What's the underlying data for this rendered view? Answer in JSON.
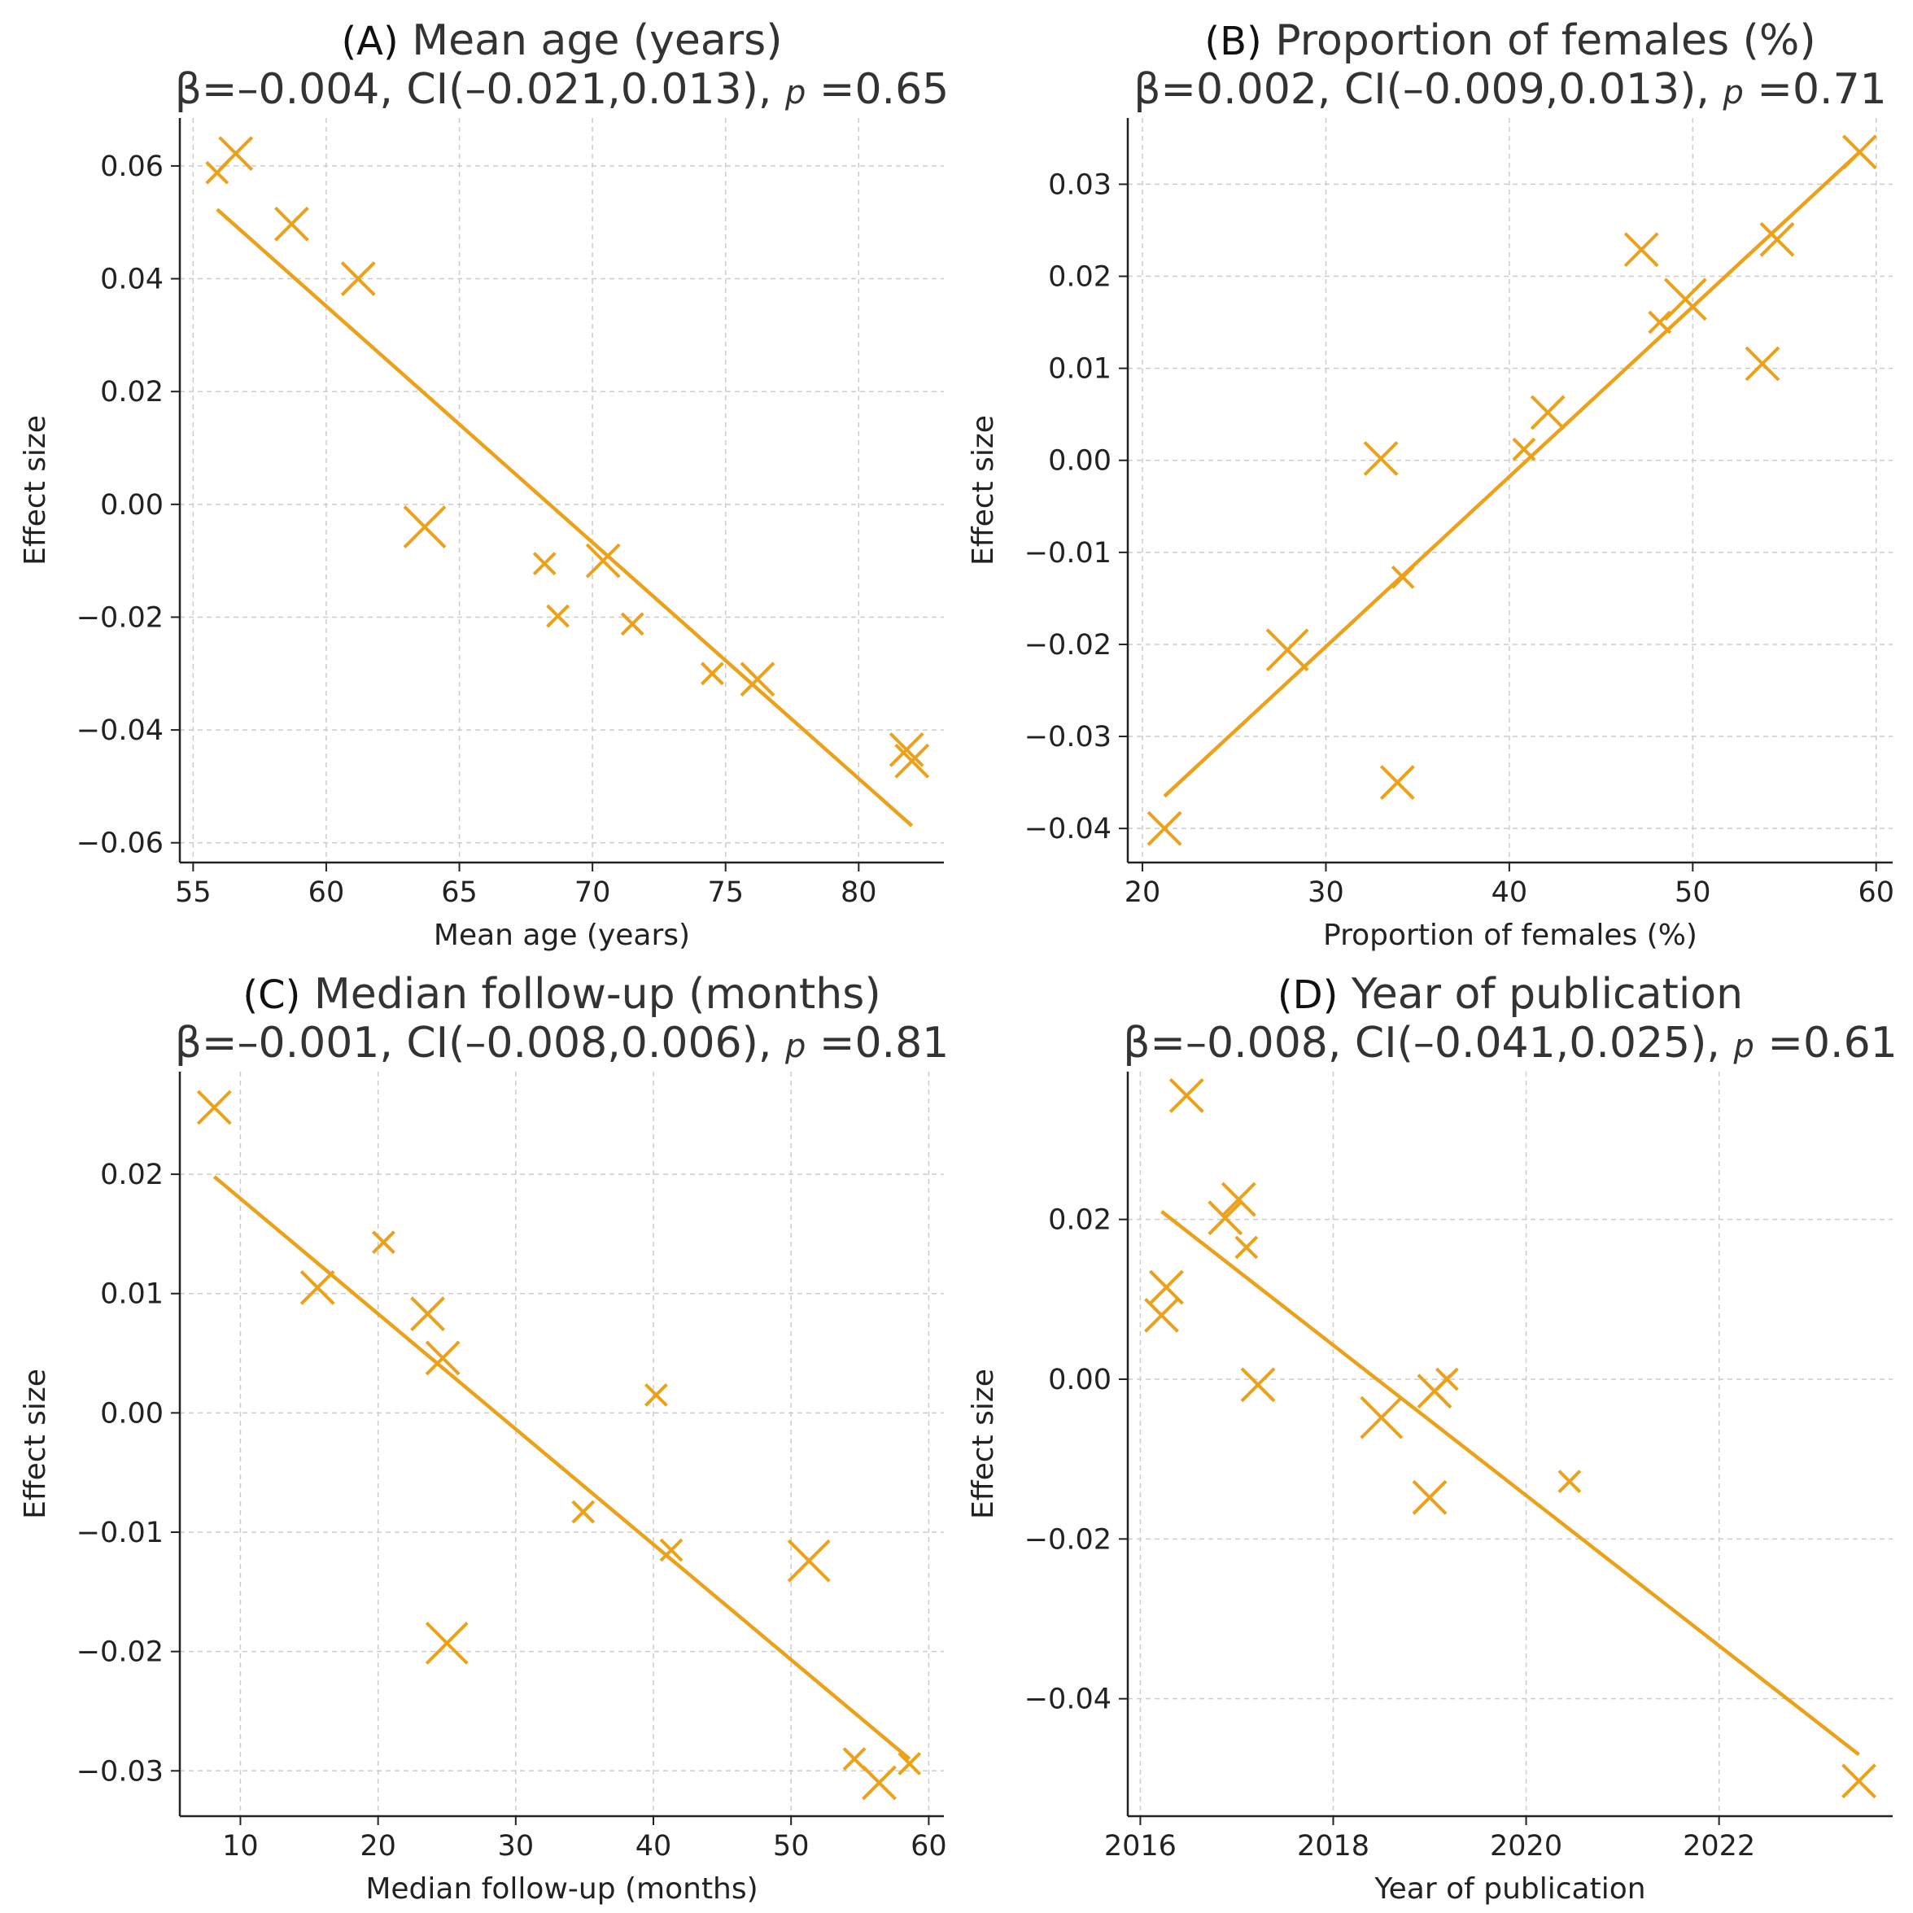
{
  "figure": {
    "accent_color": "#EBA21A",
    "grid_color": "#cccccc"
  },
  "chart_data": [
    {
      "type": "scatter",
      "panel_letter": "(A)",
      "title": "Mean age (years)",
      "stats_pre": "β=–0.004, CI(–0.021,0.013), ",
      "stats_p_symbol": "p",
      "stats_post": " =0.65",
      "xlabel": "Mean age (years)",
      "ylabel": "Effect size",
      "xlim": [
        54.5,
        83.2
      ],
      "ylim": [
        -0.0635,
        0.0685
      ],
      "xticks": [
        55,
        60,
        65,
        70,
        75,
        80
      ],
      "xtick_labels": [
        "55",
        "60",
        "65",
        "70",
        "75",
        "80"
      ],
      "yticks": [
        -0.06,
        -0.04,
        -0.02,
        0.0,
        0.02,
        0.04,
        0.06
      ],
      "ytick_labels": [
        "−0.06",
        "−0.04",
        "−0.02",
        "0.00",
        "0.02",
        "0.04",
        "0.06"
      ],
      "points": [
        {
          "x": 55.9,
          "y": 0.0588,
          "s": 1
        },
        {
          "x": 56.6,
          "y": 0.0622,
          "s": 2
        },
        {
          "x": 58.7,
          "y": 0.0497,
          "s": 2
        },
        {
          "x": 61.2,
          "y": 0.04,
          "s": 2
        },
        {
          "x": 63.7,
          "y": -0.004,
          "s": 3
        },
        {
          "x": 68.2,
          "y": -0.0105,
          "s": 1
        },
        {
          "x": 68.7,
          "y": -0.0198,
          "s": 1
        },
        {
          "x": 70.4,
          "y": -0.01,
          "s": 2
        },
        {
          "x": 71.5,
          "y": -0.0212,
          "s": 1
        },
        {
          "x": 74.5,
          "y": -0.03,
          "s": 1
        },
        {
          "x": 76.2,
          "y": -0.031,
          "s": 2
        },
        {
          "x": 81.8,
          "y": -0.0435,
          "s": 2
        },
        {
          "x": 82.0,
          "y": -0.0455,
          "s": 2
        }
      ],
      "fit_line": [
        [
          55.9,
          0.0523
        ],
        [
          82.0,
          -0.057
        ]
      ]
    },
    {
      "type": "scatter",
      "panel_letter": "(B)",
      "title": "Proportion of females (%)",
      "stats_pre": "β=0.002, CI(–0.009,0.013), ",
      "stats_p_symbol": "p",
      "stats_post": " =0.71",
      "xlabel": "Proportion of females (%)",
      "ylabel": "Effect size",
      "xlim": [
        19.2,
        60.9
      ],
      "ylim": [
        -0.0437,
        0.0372
      ],
      "xticks": [
        20,
        30,
        40,
        50,
        60
      ],
      "xtick_labels": [
        "20",
        "30",
        "40",
        "50",
        "60"
      ],
      "yticks": [
        -0.04,
        -0.03,
        -0.02,
        -0.01,
        0.0,
        0.01,
        0.02,
        0.03
      ],
      "ytick_labels": [
        "−0.04",
        "−0.03",
        "−0.02",
        "−0.01",
        "0.00",
        "0.01",
        "0.02",
        "0.03"
      ],
      "points": [
        {
          "x": 21.2,
          "y": -0.04,
          "s": 2
        },
        {
          "x": 27.9,
          "y": -0.0206,
          "s": 3
        },
        {
          "x": 33.0,
          "y": 0.0002,
          "s": 2
        },
        {
          "x": 33.9,
          "y": -0.035,
          "s": 2
        },
        {
          "x": 34.2,
          "y": -0.0127,
          "s": 1
        },
        {
          "x": 40.8,
          "y": 0.0012,
          "s": 1
        },
        {
          "x": 42.1,
          "y": 0.0052,
          "s": 2
        },
        {
          "x": 47.2,
          "y": 0.0229,
          "s": 2
        },
        {
          "x": 48.2,
          "y": 0.015,
          "s": 1
        },
        {
          "x": 49.6,
          "y": 0.0175,
          "s": 3
        },
        {
          "x": 53.8,
          "y": 0.0105,
          "s": 2
        },
        {
          "x": 54.6,
          "y": 0.024,
          "s": 2
        },
        {
          "x": 59.1,
          "y": 0.0335,
          "s": 2
        }
      ],
      "fit_line": [
        [
          21.2,
          -0.0365
        ],
        [
          59.1,
          0.0335
        ]
      ]
    },
    {
      "type": "scatter",
      "panel_letter": "(C)",
      "title": "Median follow-up (months)",
      "stats_pre": "β=–0.001, CI(–0.008,0.006), ",
      "stats_p_symbol": "p",
      "stats_post": " =0.81",
      "xlabel": "Median follow-up (months)",
      "ylabel": "Effect size",
      "xlim": [
        5.6,
        61.1
      ],
      "ylim": [
        -0.0338,
        0.0286
      ],
      "xticks": [
        10,
        20,
        30,
        40,
        50,
        60
      ],
      "xtick_labels": [
        "10",
        "20",
        "30",
        "40",
        "50",
        "60"
      ],
      "yticks": [
        -0.03,
        -0.02,
        -0.01,
        0.0,
        0.01,
        0.02
      ],
      "ytick_labels": [
        "−0.03",
        "−0.02",
        "−0.01",
        "0.00",
        "0.01",
        "0.02"
      ],
      "points": [
        {
          "x": 8.1,
          "y": 0.0256,
          "s": 2
        },
        {
          "x": 15.6,
          "y": 0.0105,
          "s": 2
        },
        {
          "x": 20.4,
          "y": 0.0143,
          "s": 1
        },
        {
          "x": 23.6,
          "y": 0.0083,
          "s": 2
        },
        {
          "x": 24.7,
          "y": 0.0046,
          "s": 2
        },
        {
          "x": 25.0,
          "y": -0.0193,
          "s": 3
        },
        {
          "x": 34.9,
          "y": -0.0083,
          "s": 1
        },
        {
          "x": 40.2,
          "y": 0.0015,
          "s": 1
        },
        {
          "x": 41.3,
          "y": -0.0115,
          "s": 1
        },
        {
          "x": 51.3,
          "y": -0.0124,
          "s": 3
        },
        {
          "x": 54.6,
          "y": -0.029,
          "s": 1
        },
        {
          "x": 56.4,
          "y": -0.031,
          "s": 2
        },
        {
          "x": 58.6,
          "y": -0.0294,
          "s": 1
        }
      ],
      "fit_line": [
        [
          8.1,
          0.0198
        ],
        [
          58.6,
          -0.029
        ]
      ]
    },
    {
      "type": "scatter",
      "panel_letter": "(D)",
      "title": "Year of publication",
      "stats_pre": "β=–0.008, CI(–0.041,0.025), ",
      "stats_p_symbol": "p",
      "stats_post": " =0.61",
      "xlabel": "Year of publication",
      "ylabel": "Effect size",
      "xlim": [
        2015.87,
        2023.8
      ],
      "ylim": [
        -0.0547,
        0.0385
      ],
      "xticks": [
        2016,
        2018,
        2020,
        2022
      ],
      "xtick_labels": [
        "2016",
        "2018",
        "2020",
        "2022"
      ],
      "yticks": [
        -0.04,
        -0.02,
        0.0,
        0.02
      ],
      "ytick_labels": [
        "−0.04",
        "−0.02",
        "0.00",
        "0.02"
      ],
      "points": [
        {
          "x": 2016.22,
          "y": 0.008,
          "s": 2
        },
        {
          "x": 2016.27,
          "y": 0.0115,
          "s": 2
        },
        {
          "x": 2016.48,
          "y": 0.0355,
          "s": 2
        },
        {
          "x": 2016.88,
          "y": 0.0202,
          "s": 2
        },
        {
          "x": 2017.02,
          "y": 0.0225,
          "s": 2
        },
        {
          "x": 2017.1,
          "y": 0.0165,
          "s": 1
        },
        {
          "x": 2017.22,
          "y": -0.0007,
          "s": 2
        },
        {
          "x": 2018.5,
          "y": -0.0048,
          "s": 3
        },
        {
          "x": 2019.0,
          "y": -0.0148,
          "s": 2
        },
        {
          "x": 2019.05,
          "y": -0.0015,
          "s": 2
        },
        {
          "x": 2019.18,
          "y": 0.0,
          "s": 1
        },
        {
          "x": 2020.45,
          "y": -0.0128,
          "s": 1
        },
        {
          "x": 2023.45,
          "y": -0.0503,
          "s": 2
        }
      ],
      "fit_line": [
        [
          2016.22,
          0.021
        ],
        [
          2023.45,
          -0.047
        ]
      ]
    }
  ]
}
